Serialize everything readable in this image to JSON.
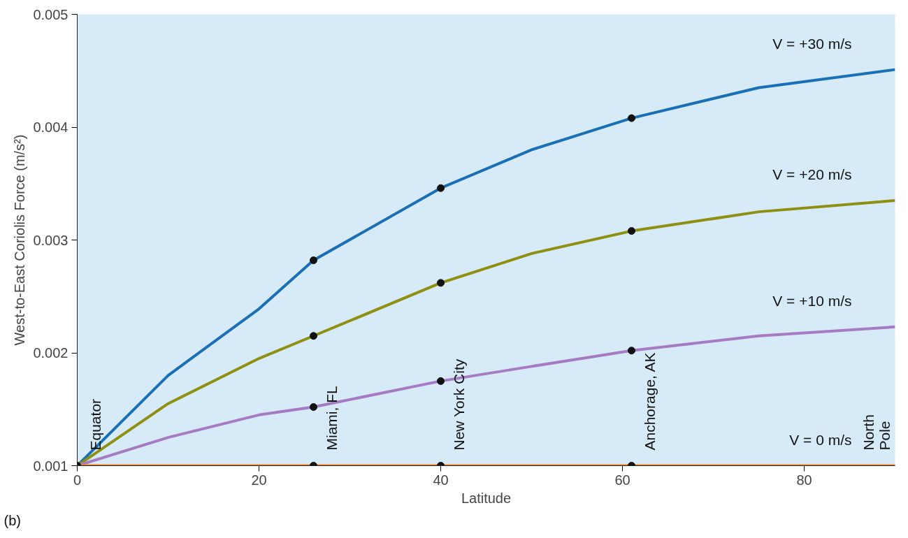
{
  "chart_data": {
    "type": "line",
    "xlabel": "Latitude",
    "ylabel": "West-to-East Coriolis Force (m/s²)",
    "xlim": [
      0,
      90
    ],
    "ylim": [
      0.001,
      0.005
    ],
    "xticks": [
      0,
      20,
      40,
      60,
      80
    ],
    "yticks": [
      0.001,
      0.002,
      0.003,
      0.004,
      0.005
    ],
    "grid": false,
    "line_style": "solid",
    "marker": "none",
    "series": [
      {
        "name": "V = +30 m/s",
        "color": "#1a6fb5",
        "x": [
          0,
          10,
          20,
          26,
          40,
          50,
          61,
          75,
          90
        ],
        "values": [
          0.001,
          0.0018,
          0.00239,
          0.00282,
          0.00346,
          0.0038,
          0.00408,
          0.00435,
          0.00451
        ]
      },
      {
        "name": "V = +20 m/s",
        "color": "#8f8f12",
        "x": [
          0,
          10,
          20,
          26,
          40,
          50,
          61,
          75,
          90
        ],
        "values": [
          0.001,
          0.00155,
          0.00195,
          0.00215,
          0.00262,
          0.00288,
          0.00308,
          0.00325,
          0.00335
        ]
      },
      {
        "name": "V = +10 m/s",
        "color": "#a77bc4",
        "x": [
          0,
          10,
          20,
          26,
          40,
          50,
          61,
          75,
          90
        ],
        "values": [
          0.001,
          0.00125,
          0.00145,
          0.00152,
          0.00175,
          0.00188,
          0.00202,
          0.00215,
          0.00223
        ]
      },
      {
        "name": "V = 0 m/s",
        "color": "#f0811e",
        "x": [
          0,
          90
        ],
        "values": [
          0.001,
          0.001
        ]
      },
      {
        "type": "scatter",
        "color": "#111111",
        "marker": "circle",
        "x": [
          0,
          26,
          40,
          61,
          26,
          40,
          61,
          26,
          40,
          61,
          26,
          40,
          61
        ],
        "values": [
          0.001,
          0.00282,
          0.00346,
          0.00408,
          0.00215,
          0.00262,
          0.00308,
          0.00152,
          0.00175,
          0.00202,
          0.001,
          0.001,
          0.001
        ]
      }
    ],
    "annotations": [
      {
        "text": "Equator",
        "x": 0,
        "y": 0.001
      },
      {
        "text": "Miami, FL",
        "x": 26,
        "y": 0.001
      },
      {
        "text": "New York City",
        "x": 40,
        "y": 0.001
      },
      {
        "text": "Anchorage, AK",
        "x": 61,
        "y": 0.001
      },
      {
        "text": "North\nPole",
        "x": 90,
        "y": 0.001
      },
      "(b)"
    ]
  }
}
